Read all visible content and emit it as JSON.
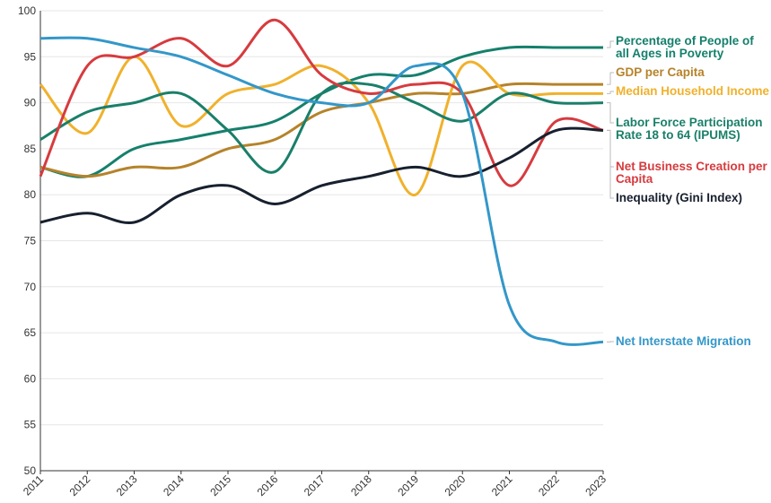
{
  "chart_data": {
    "type": "line",
    "x": [
      2011,
      2012,
      2013,
      2014,
      2015,
      2016,
      2017,
      2018,
      2019,
      2020,
      2021,
      2022,
      2023
    ],
    "xlim": [
      2011,
      2023
    ],
    "xticks": [
      2011,
      2012,
      2013,
      2014,
      2015,
      2016,
      2017,
      2018,
      2019,
      2020,
      2021,
      2022,
      2023
    ],
    "ylim": [
      50,
      100
    ],
    "yticks": [
      50,
      55,
      60,
      65,
      70,
      75,
      80,
      85,
      90,
      95,
      100
    ],
    "grid": true,
    "series": [
      {
        "name": "Percentage of People of all Ages in Poverty",
        "color": "#15806c",
        "values": [
          83,
          82,
          85,
          86,
          87,
          88,
          91,
          93,
          93,
          95,
          96,
          96,
          96
        ]
      },
      {
        "name": "GDP per Capita",
        "color": "#b5832a",
        "values": [
          83,
          82,
          83,
          83,
          85,
          86,
          89,
          90,
          91,
          91,
          92,
          92,
          92
        ]
      },
      {
        "name": "Median Household Income",
        "color": "#f0b12c",
        "values": [
          92,
          86.7,
          95,
          87.5,
          91,
          92,
          94,
          90,
          80,
          94,
          91,
          91,
          91
        ]
      },
      {
        "name": "Labor Force Participation Rate 18 to 64 (IPUMS)",
        "color": "#1a7f6a",
        "values": [
          86,
          89,
          90,
          91,
          87,
          82.5,
          91,
          92,
          90,
          88,
          91,
          90,
          90
        ]
      },
      {
        "name": "Net Business Creation per Capita",
        "color": "#d63b3f",
        "values": [
          82,
          94,
          95,
          97,
          94,
          99,
          93,
          91,
          92,
          91,
          81,
          88,
          87
        ]
      },
      {
        "name": "Inequality (Gini Index)",
        "color": "#17202e",
        "values": [
          77,
          78,
          77,
          80,
          81,
          79,
          81,
          82,
          83,
          82,
          84,
          87,
          87
        ]
      },
      {
        "name": "Net Interstate Migration",
        "color": "#3397c9",
        "values": [
          97,
          97,
          96,
          95,
          93,
          91,
          90,
          90,
          94,
          91,
          68,
          64,
          64
        ]
      }
    ]
  }
}
